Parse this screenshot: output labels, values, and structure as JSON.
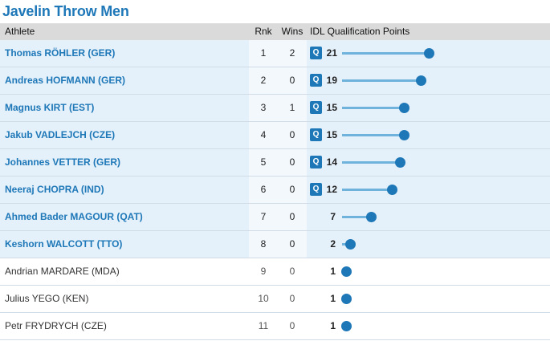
{
  "title": "Javelin Throw Men",
  "headers": {
    "athlete": "Athlete",
    "rank": "Rnk",
    "wins": "Wins",
    "points": "IDL Qualification Points"
  },
  "qualified_badge": "Q",
  "colors": {
    "accent": "#1e78b8",
    "bar": "#6fb3dc",
    "qualified_row_bg": "#e4f0fa",
    "header_bg": "#dadada"
  },
  "max_points": 21,
  "rows": [
    {
      "athlete": "Thomas RÖHLER (GER)",
      "rank": "1",
      "wins": "2",
      "points": 21,
      "qualified": true,
      "highlighted": true
    },
    {
      "athlete": "Andreas HOFMANN (GER)",
      "rank": "2",
      "wins": "0",
      "points": 19,
      "qualified": true,
      "highlighted": true
    },
    {
      "athlete": "Magnus KIRT (EST)",
      "rank": "3",
      "wins": "1",
      "points": 15,
      "qualified": true,
      "highlighted": true
    },
    {
      "athlete": "Jakub VADLEJCH (CZE)",
      "rank": "4",
      "wins": "0",
      "points": 15,
      "qualified": true,
      "highlighted": true
    },
    {
      "athlete": "Johannes VETTER (GER)",
      "rank": "5",
      "wins": "0",
      "points": 14,
      "qualified": true,
      "highlighted": true
    },
    {
      "athlete": "Neeraj CHOPRA (IND)",
      "rank": "6",
      "wins": "0",
      "points": 12,
      "qualified": true,
      "highlighted": true
    },
    {
      "athlete": "Ahmed Bader MAGOUR (QAT)",
      "rank": "7",
      "wins": "0",
      "points": 7,
      "qualified": false,
      "highlighted": true
    },
    {
      "athlete": "Keshorn WALCOTT (TTO)",
      "rank": "8",
      "wins": "0",
      "points": 2,
      "qualified": false,
      "highlighted": true
    },
    {
      "athlete": "Andrian MARDARE (MDA)",
      "rank": "9",
      "wins": "0",
      "points": 1,
      "qualified": false,
      "highlighted": false
    },
    {
      "athlete": "Julius YEGO (KEN)",
      "rank": "10",
      "wins": "0",
      "points": 1,
      "qualified": false,
      "highlighted": false
    },
    {
      "athlete": "Petr FRYDRYCH (CZE)",
      "rank": "11",
      "wins": "0",
      "points": 1,
      "qualified": false,
      "highlighted": false
    }
  ]
}
